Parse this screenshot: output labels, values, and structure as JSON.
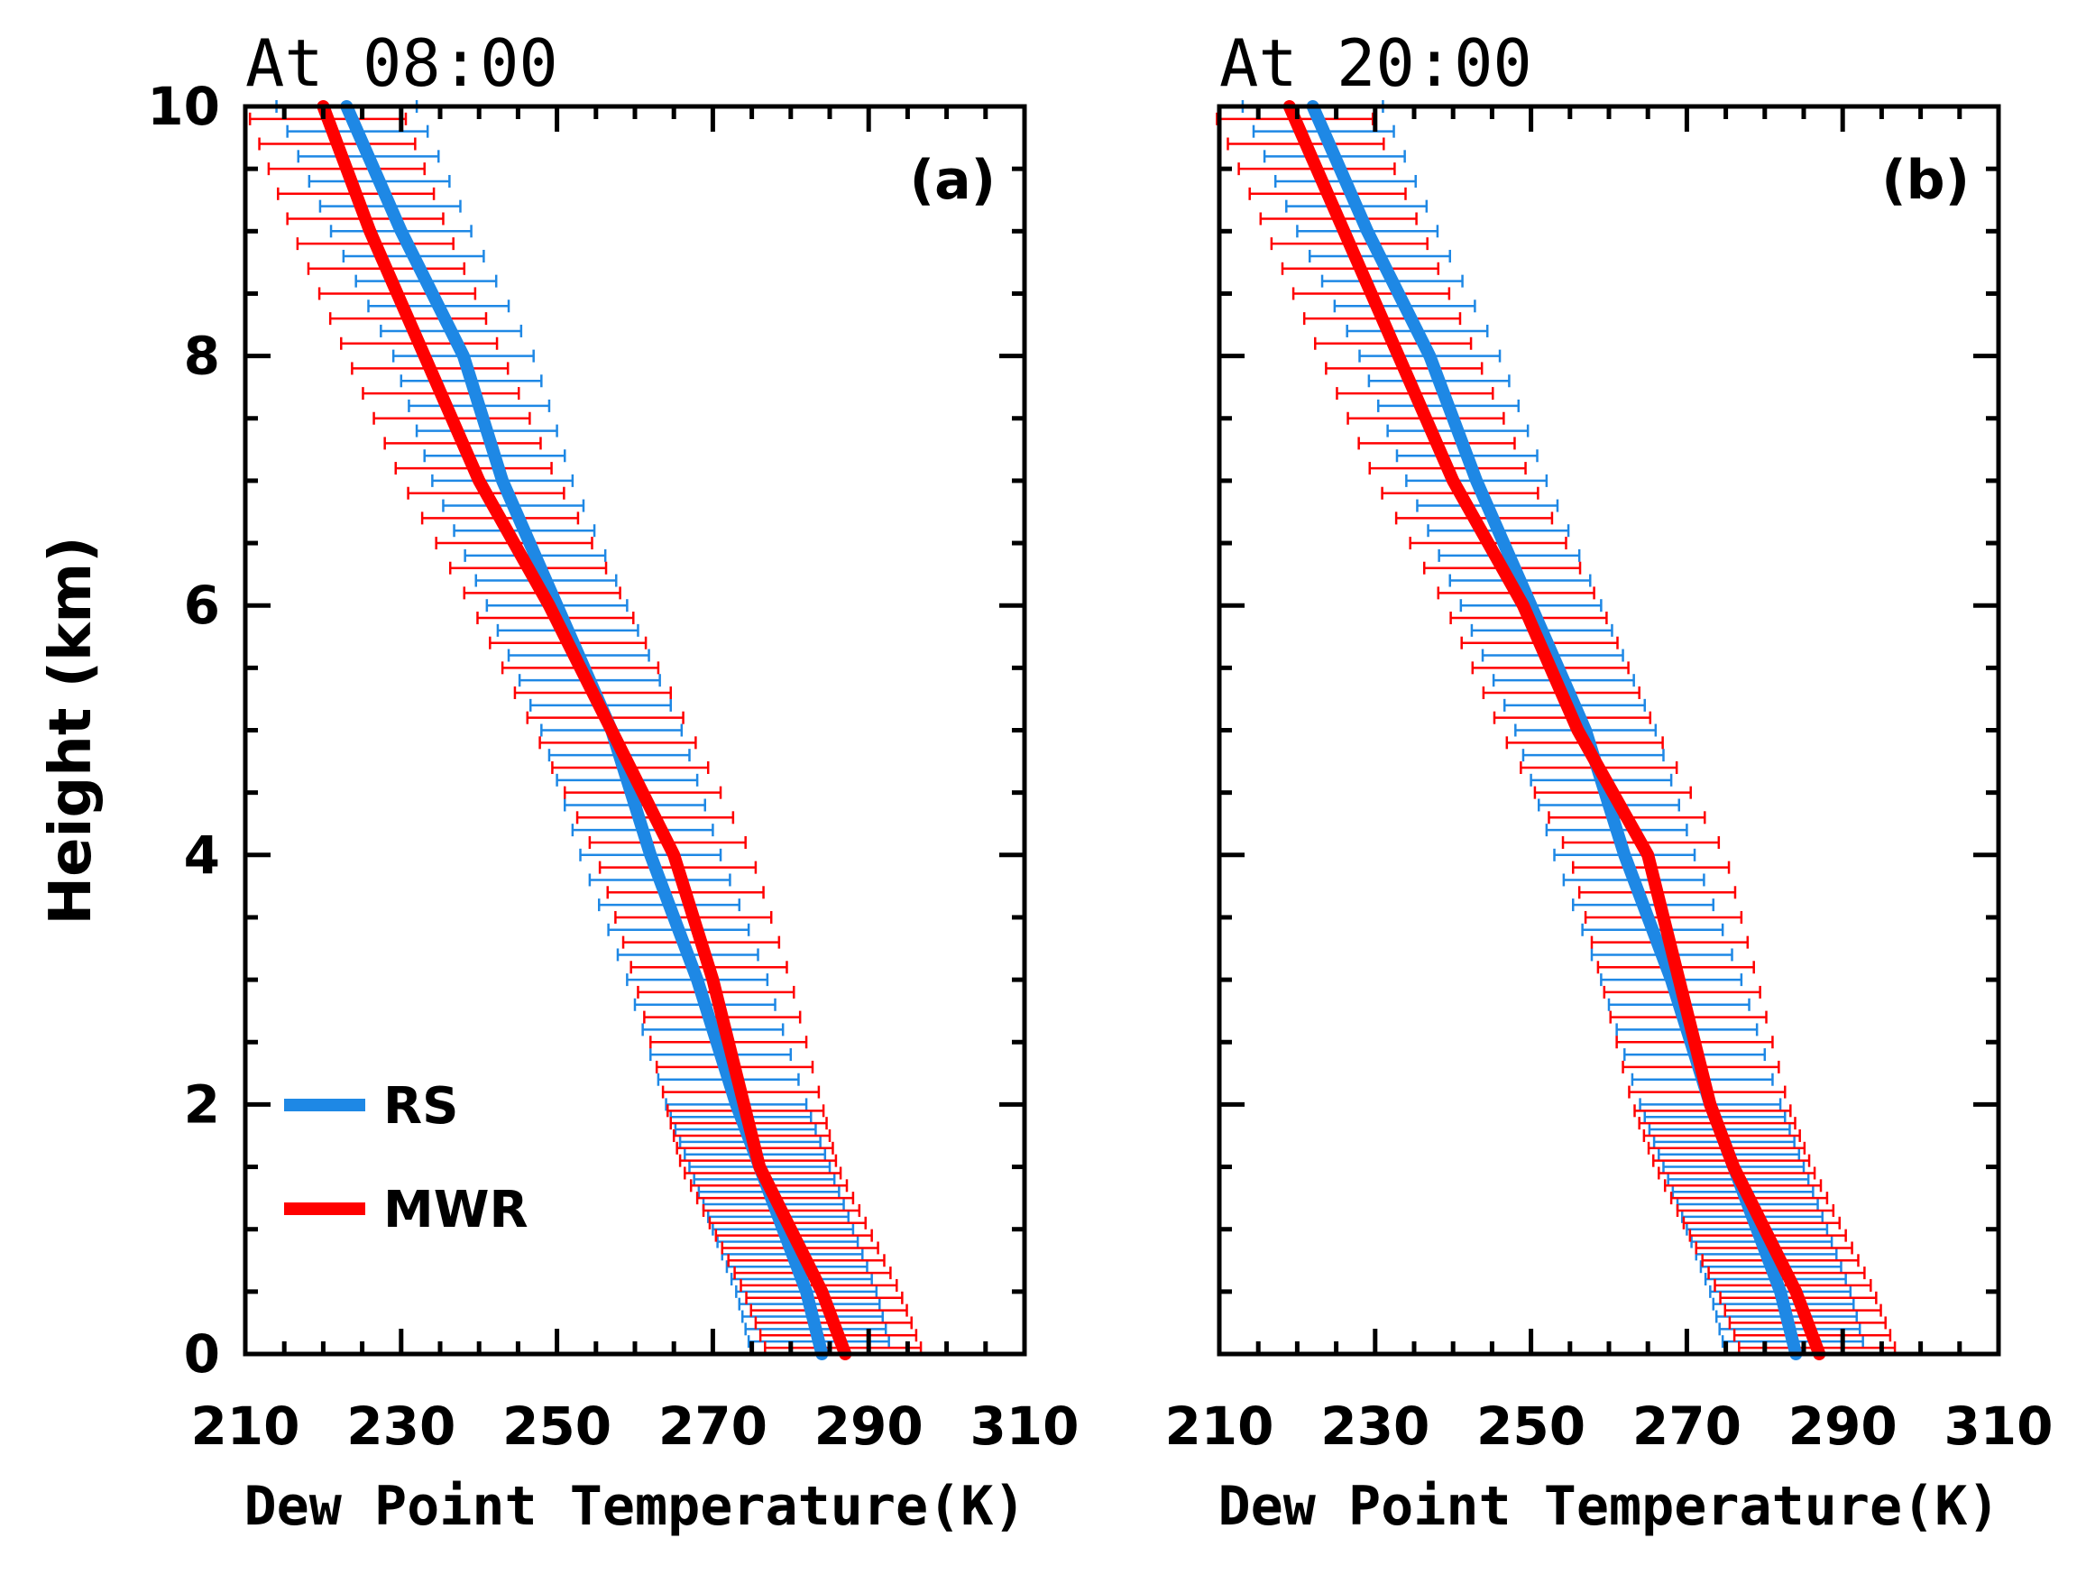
{
  "chart_data": [
    {
      "type": "line",
      "title": "At 08:00",
      "panel_label": "(a)",
      "xlabel": "Dew Point Temperature(K)",
      "ylabel": "Height (km)",
      "xlim": [
        210,
        310
      ],
      "ylim": [
        0,
        10
      ],
      "xticks": [
        210,
        230,
        250,
        270,
        290,
        310
      ],
      "yticks": [
        0,
        2,
        4,
        6,
        8,
        10
      ],
      "legend": {
        "placement": "lower-left",
        "entries": [
          "RS",
          "MWR"
        ]
      },
      "series": [
        {
          "name": "RS",
          "color": "#1e88e5",
          "y": [
            0,
            0.5,
            1,
            1.5,
            2,
            3,
            4,
            5,
            6,
            7,
            8,
            9,
            10
          ],
          "x": [
            284,
            282,
            279,
            276,
            273,
            268,
            262,
            257,
            250,
            243,
            238,
            230,
            223
          ],
          "err_y": [
            0.1,
            0.2,
            0.3,
            0.4,
            0.5,
            0.6,
            0.7,
            0.8,
            0.9,
            1.0,
            1.1,
            1.2,
            1.3,
            1.4,
            1.5,
            1.6,
            1.7,
            1.8,
            1.9,
            2.0,
            2.2,
            2.4,
            2.6,
            2.8,
            3.0,
            3.2,
            3.4,
            3.6,
            3.8,
            4.0,
            4.2,
            4.4,
            4.6,
            4.8,
            5.0,
            5.2,
            5.4,
            5.6,
            5.8,
            6.0,
            6.2,
            6.4,
            6.6,
            6.8,
            7.0,
            7.2,
            7.4,
            7.6,
            7.8,
            8.0,
            8.2,
            8.4,
            8.6,
            8.8,
            9.0,
            9.2,
            9.4,
            9.6,
            9.8,
            10.0
          ],
          "err_halfwidth": 9
        },
        {
          "name": "MWR",
          "color": "#ff0000",
          "y": [
            0,
            0.5,
            1,
            1.5,
            2,
            3,
            4,
            5,
            6,
            7,
            8,
            9,
            10
          ],
          "x": [
            287,
            284,
            280,
            276,
            274,
            270,
            265,
            257,
            249,
            240,
            233,
            226,
            220
          ],
          "err_y": [
            0.05,
            0.15,
            0.25,
            0.35,
            0.45,
            0.55,
            0.65,
            0.75,
            0.85,
            0.95,
            1.05,
            1.15,
            1.25,
            1.35,
            1.45,
            1.55,
            1.65,
            1.75,
            1.85,
            1.95,
            2.1,
            2.3,
            2.5,
            2.7,
            2.9,
            3.1,
            3.3,
            3.5,
            3.7,
            3.9,
            4.1,
            4.3,
            4.5,
            4.7,
            4.9,
            5.1,
            5.3,
            5.5,
            5.7,
            5.9,
            6.1,
            6.3,
            6.5,
            6.7,
            6.9,
            7.1,
            7.3,
            7.5,
            7.7,
            7.9,
            8.1,
            8.3,
            8.5,
            8.7,
            8.9,
            9.1,
            9.3,
            9.5,
            9.7,
            9.9
          ],
          "err_halfwidth": 10
        }
      ]
    },
    {
      "type": "line",
      "title": "At 20:00",
      "panel_label": "(b)",
      "xlabel": "Dew Point Temperature(K)",
      "ylabel": "",
      "xlim": [
        210,
        310
      ],
      "ylim": [
        0,
        10
      ],
      "xticks": [
        210,
        230,
        250,
        270,
        290,
        310
      ],
      "yticks": [
        0,
        2,
        4,
        6,
        8,
        10
      ],
      "legend": null,
      "series": [
        {
          "name": "RS",
          "color": "#1e88e5",
          "y": [
            0,
            0.5,
            1,
            1.5,
            2,
            3,
            4,
            5,
            6,
            7,
            8,
            9,
            10
          ],
          "x": [
            284,
            282,
            279,
            276,
            273,
            268,
            262,
            257,
            250,
            243,
            237,
            229,
            222
          ],
          "err_y": [
            0.1,
            0.2,
            0.3,
            0.4,
            0.5,
            0.6,
            0.7,
            0.8,
            0.9,
            1.0,
            1.1,
            1.2,
            1.3,
            1.4,
            1.5,
            1.6,
            1.7,
            1.8,
            1.9,
            2.0,
            2.2,
            2.4,
            2.6,
            2.8,
            3.0,
            3.2,
            3.4,
            3.6,
            3.8,
            4.0,
            4.2,
            4.4,
            4.6,
            4.8,
            5.0,
            5.2,
            5.4,
            5.6,
            5.8,
            6.0,
            6.2,
            6.4,
            6.6,
            6.8,
            7.0,
            7.2,
            7.4,
            7.6,
            7.8,
            8.0,
            8.2,
            8.4,
            8.6,
            8.8,
            9.0,
            9.2,
            9.4,
            9.6,
            9.8,
            10.0
          ],
          "err_halfwidth": 9
        },
        {
          "name": "MWR",
          "color": "#ff0000",
          "y": [
            0,
            0.5,
            1,
            1.5,
            2,
            3,
            4,
            5,
            6,
            7,
            8,
            9,
            10
          ],
          "x": [
            287,
            284,
            280,
            276,
            273,
            269,
            265,
            256,
            249,
            240,
            233,
            226,
            219
          ],
          "err_y": [
            0.05,
            0.15,
            0.25,
            0.35,
            0.45,
            0.55,
            0.65,
            0.75,
            0.85,
            0.95,
            1.05,
            1.15,
            1.25,
            1.35,
            1.45,
            1.55,
            1.65,
            1.75,
            1.85,
            1.95,
            2.1,
            2.3,
            2.5,
            2.7,
            2.9,
            3.1,
            3.3,
            3.5,
            3.7,
            3.9,
            4.1,
            4.3,
            4.5,
            4.7,
            4.9,
            5.1,
            5.3,
            5.5,
            5.7,
            5.9,
            6.1,
            6.3,
            6.5,
            6.7,
            6.9,
            7.1,
            7.3,
            7.5,
            7.7,
            7.9,
            8.1,
            8.3,
            8.5,
            8.7,
            8.9,
            9.1,
            9.3,
            9.5,
            9.7,
            9.9
          ],
          "err_halfwidth": 10
        }
      ]
    }
  ]
}
